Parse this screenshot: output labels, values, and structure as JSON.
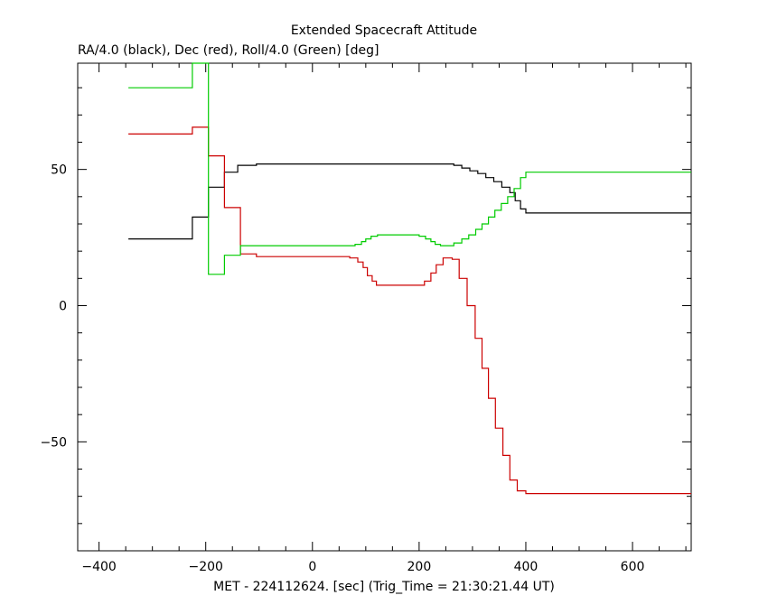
{
  "chart_data": {
    "type": "line",
    "title": "Extended Spacecraft Attitude",
    "subtitle": "RA/4.0 (black), Dec (red), Roll/4.0 (Green) [deg]",
    "xlabel": "MET - 224112624. [sec] (Trig_Time = 21:30:21.44 UT)",
    "ylabel": "",
    "xlim": [
      -440,
      710
    ],
    "ylim": [
      -90,
      89
    ],
    "x_ticks": [
      -400,
      -200,
      0,
      200,
      400,
      600
    ],
    "x_tick_labels": [
      "−400",
      "−200",
      "0",
      "200",
      "400",
      "600"
    ],
    "y_ticks": [
      -50,
      0,
      50
    ],
    "y_tick_labels": [
      "−50",
      "0",
      "50"
    ],
    "grid": false,
    "step": true,
    "series": [
      {
        "name": "RA/4.0",
        "color": "#000000",
        "points": [
          [
            -345,
            24.5
          ],
          [
            -225,
            24.5
          ],
          [
            -225,
            32.5
          ],
          [
            -195,
            32.5
          ],
          [
            -195,
            43.5
          ],
          [
            -165,
            43.5
          ],
          [
            -165,
            49
          ],
          [
            -140,
            49
          ],
          [
            -140,
            51.5
          ],
          [
            -105,
            51.5
          ],
          [
            -105,
            52
          ],
          [
            265,
            52
          ],
          [
            265,
            51.5
          ],
          [
            280,
            51.5
          ],
          [
            280,
            50.5
          ],
          [
            295,
            50.5
          ],
          [
            295,
            49.5
          ],
          [
            310,
            49.5
          ],
          [
            310,
            48.5
          ],
          [
            325,
            48.5
          ],
          [
            325,
            47
          ],
          [
            340,
            47
          ],
          [
            340,
            45.5
          ],
          [
            355,
            45.5
          ],
          [
            355,
            43.5
          ],
          [
            370,
            43.5
          ],
          [
            370,
            41.5
          ],
          [
            380,
            41.5
          ],
          [
            380,
            38.5
          ],
          [
            390,
            38.5
          ],
          [
            390,
            35.5
          ],
          [
            400,
            35.5
          ],
          [
            400,
            34
          ],
          [
            710,
            34
          ]
        ]
      },
      {
        "name": "Dec",
        "color": "#cc0000",
        "points": [
          [
            -345,
            63
          ],
          [
            -225,
            63
          ],
          [
            -225,
            65.5
          ],
          [
            -195,
            65.5
          ],
          [
            -195,
            55
          ],
          [
            -165,
            55
          ],
          [
            -165,
            36
          ],
          [
            -135,
            36
          ],
          [
            -135,
            19
          ],
          [
            -105,
            19
          ],
          [
            -105,
            18
          ],
          [
            70,
            18
          ],
          [
            70,
            17.5
          ],
          [
            85,
            17.5
          ],
          [
            85,
            16
          ],
          [
            95,
            16
          ],
          [
            95,
            14
          ],
          [
            103,
            14
          ],
          [
            103,
            11
          ],
          [
            112,
            11
          ],
          [
            112,
            9
          ],
          [
            120,
            9
          ],
          [
            120,
            7.5
          ],
          [
            210,
            7.5
          ],
          [
            210,
            9
          ],
          [
            222,
            9
          ],
          [
            222,
            12
          ],
          [
            232,
            12
          ],
          [
            232,
            15
          ],
          [
            245,
            15
          ],
          [
            245,
            17.5
          ],
          [
            262,
            17.5
          ],
          [
            262,
            17
          ],
          [
            275,
            17
          ],
          [
            275,
            10
          ],
          [
            290,
            10
          ],
          [
            290,
            0
          ],
          [
            305,
            0
          ],
          [
            305,
            -12
          ],
          [
            318,
            -12
          ],
          [
            318,
            -23
          ],
          [
            330,
            -23
          ],
          [
            330,
            -34
          ],
          [
            343,
            -34
          ],
          [
            343,
            -45
          ],
          [
            357,
            -45
          ],
          [
            357,
            -55
          ],
          [
            370,
            -55
          ],
          [
            370,
            -64
          ],
          [
            384,
            -64
          ],
          [
            384,
            -68
          ],
          [
            400,
            -68
          ],
          [
            400,
            -69
          ],
          [
            710,
            -69
          ]
        ]
      },
      {
        "name": "Roll/4.0",
        "color": "#00cc00",
        "points": [
          [
            -345,
            80
          ],
          [
            -225,
            80
          ],
          [
            -225,
            89
          ],
          [
            -195,
            89
          ],
          [
            -195,
            11.5
          ],
          [
            -165,
            11.5
          ],
          [
            -165,
            18.5
          ],
          [
            -135,
            18.5
          ],
          [
            -135,
            22
          ],
          [
            80,
            22
          ],
          [
            80,
            22.5
          ],
          [
            92,
            22.5
          ],
          [
            92,
            23.5
          ],
          [
            100,
            23.5
          ],
          [
            100,
            24.5
          ],
          [
            110,
            24.5
          ],
          [
            110,
            25.5
          ],
          [
            122,
            25.5
          ],
          [
            122,
            26
          ],
          [
            200,
            26
          ],
          [
            200,
            25.5
          ],
          [
            212,
            25.5
          ],
          [
            212,
            24.5
          ],
          [
            222,
            24.5
          ],
          [
            222,
            23.5
          ],
          [
            230,
            23.5
          ],
          [
            230,
            22.5
          ],
          [
            240,
            22.5
          ],
          [
            240,
            22
          ],
          [
            265,
            22
          ],
          [
            265,
            23
          ],
          [
            280,
            23
          ],
          [
            280,
            24.5
          ],
          [
            293,
            24.5
          ],
          [
            293,
            26
          ],
          [
            306,
            26
          ],
          [
            306,
            28
          ],
          [
            318,
            28
          ],
          [
            318,
            30
          ],
          [
            330,
            30
          ],
          [
            330,
            32.5
          ],
          [
            342,
            32.5
          ],
          [
            342,
            35
          ],
          [
            354,
            35
          ],
          [
            354,
            37.5
          ],
          [
            366,
            37.5
          ],
          [
            366,
            40
          ],
          [
            378,
            40
          ],
          [
            378,
            43
          ],
          [
            390,
            43
          ],
          [
            390,
            47
          ],
          [
            400,
            47
          ],
          [
            400,
            49
          ],
          [
            710,
            49
          ]
        ]
      }
    ]
  }
}
